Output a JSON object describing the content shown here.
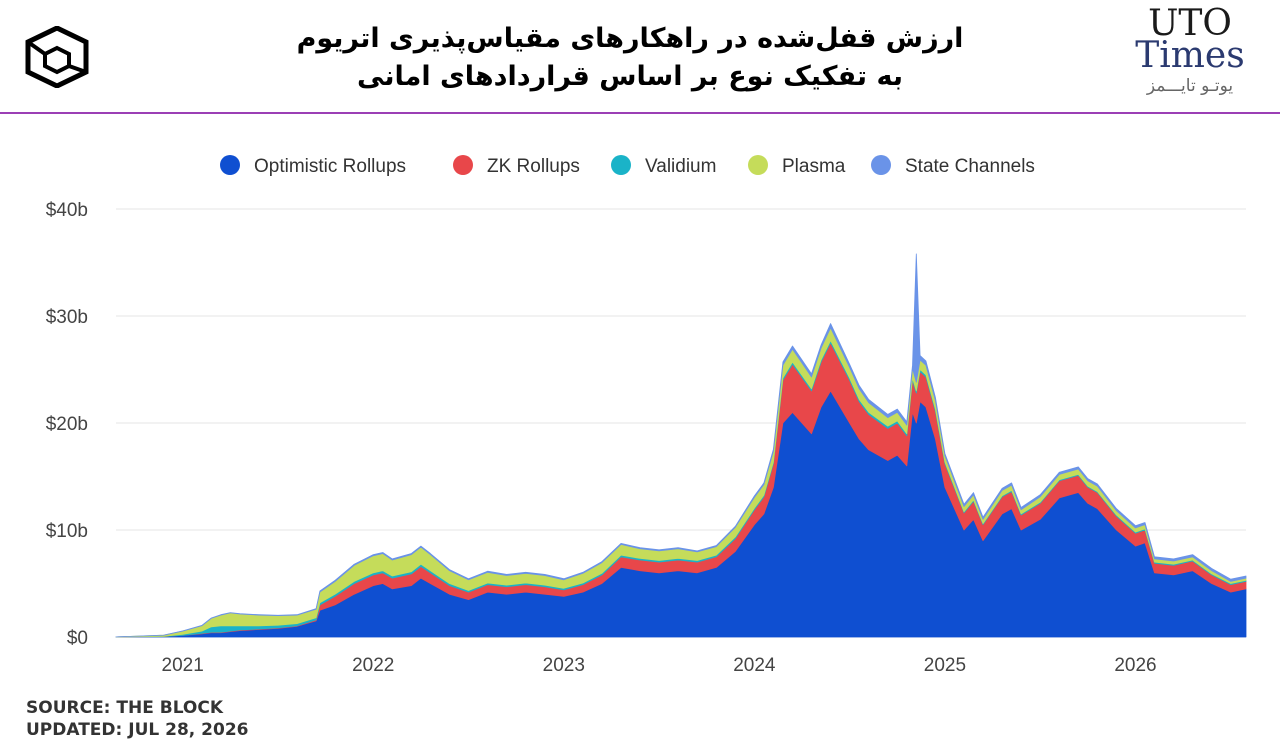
{
  "header": {
    "title_line1": "ارزش قفل‌شده در راهکارهای مقیاس‌پذیری اتریوم",
    "title_line2": "به تفکیک نوع بر اساس قراردادهای امانی",
    "brand": {
      "line1": "UTO",
      "line2": "Times",
      "persian": "یوتـو تایـــمز"
    }
  },
  "footer": {
    "source": "SOURCE: THE BLOCK",
    "updated": "UPDATED: JUL 28, 2026"
  },
  "chart_data": {
    "type": "area",
    "stacked": true,
    "title": "ارزش قفل‌شده در راهکارهای مقیاس‌پذیری اتریوم — به تفکیک نوع بر اساس قراردادهای امانی",
    "xlabel": "",
    "ylabel": "",
    "ylim": [
      0,
      40
    ],
    "y_unit": "billion USD",
    "yticks": [
      "$0",
      "$10b",
      "$20b",
      "$30b",
      "$40b"
    ],
    "yticks_values": [
      0,
      10,
      20,
      30,
      40
    ],
    "xticks": [
      "2021",
      "2022",
      "2023",
      "2024",
      "2025",
      "2026"
    ],
    "grid": true,
    "legend_position": "top",
    "x": [
      2020.65,
      2020.9,
      2021.0,
      2021.1,
      2021.15,
      2021.2,
      2021.25,
      2021.3,
      2021.4,
      2021.5,
      2021.6,
      2021.7,
      2021.72,
      2021.8,
      2021.9,
      2022.0,
      2022.05,
      2022.1,
      2022.2,
      2022.25,
      2022.3,
      2022.4,
      2022.5,
      2022.6,
      2022.7,
      2022.8,
      2022.9,
      2023.0,
      2023.1,
      2023.2,
      2023.3,
      2023.4,
      2023.5,
      2023.6,
      2023.7,
      2023.8,
      2023.9,
      2024.0,
      2024.05,
      2024.1,
      2024.15,
      2024.2,
      2024.3,
      2024.35,
      2024.4,
      2024.5,
      2024.55,
      2024.6,
      2024.7,
      2024.75,
      2024.8,
      2024.83,
      2024.85,
      2024.87,
      2024.9,
      2024.95,
      2025.0,
      2025.1,
      2025.15,
      2025.2,
      2025.3,
      2025.35,
      2025.4,
      2025.5,
      2025.6,
      2025.7,
      2025.75,
      2025.8,
      2025.9,
      2026.0,
      2026.05,
      2026.1,
      2026.2,
      2026.3,
      2026.4,
      2026.5,
      2026.58
    ],
    "series": [
      {
        "name": "Optimistic Rollups",
        "color": "#0f4fd1",
        "values": [
          0.01,
          0.05,
          0.15,
          0.3,
          0.4,
          0.4,
          0.5,
          0.6,
          0.7,
          0.8,
          1.0,
          1.5,
          2.5,
          3.0,
          4.0,
          4.8,
          5.0,
          4.5,
          4.8,
          5.5,
          5.0,
          4.0,
          3.5,
          4.2,
          4.0,
          4.2,
          4.0,
          3.8,
          4.2,
          5.0,
          6.5,
          6.2,
          6.0,
          6.2,
          6.0,
          6.5,
          8.0,
          10.5,
          11.5,
          14.0,
          20.0,
          21.0,
          19.0,
          21.5,
          23.0,
          20.0,
          18.5,
          17.5,
          16.5,
          17.0,
          16.0,
          21.0,
          20.0,
          22.0,
          21.5,
          18.5,
          14.0,
          10.0,
          11.0,
          9.0,
          11.5,
          12.0,
          10.0,
          11.0,
          13.0,
          13.5,
          12.5,
          12.0,
          10.0,
          8.5,
          8.8,
          6.0,
          5.8,
          6.2,
          5.0,
          4.2,
          4.5
        ]
      },
      {
        "name": "ZK Rollups",
        "color": "#e8474a",
        "values": [
          0.0,
          0.0,
          0.0,
          0.05,
          0.05,
          0.05,
          0.05,
          0.05,
          0.05,
          0.05,
          0.05,
          0.1,
          0.5,
          0.8,
          1.0,
          1.0,
          1.0,
          1.0,
          1.1,
          1.1,
          1.0,
          0.8,
          0.7,
          0.7,
          0.7,
          0.7,
          0.7,
          0.6,
          0.7,
          0.8,
          1.0,
          1.0,
          1.0,
          1.0,
          1.0,
          1.0,
          1.2,
          1.4,
          1.6,
          2.2,
          4.0,
          4.5,
          4.0,
          4.2,
          4.5,
          4.0,
          3.5,
          3.3,
          3.0,
          3.0,
          2.8,
          3.0,
          2.8,
          2.8,
          2.8,
          2.6,
          2.2,
          1.6,
          1.7,
          1.5,
          1.6,
          1.6,
          1.4,
          1.5,
          1.6,
          1.6,
          1.5,
          1.5,
          1.3,
          1.2,
          1.2,
          0.9,
          0.9,
          0.9,
          0.8,
          0.7,
          0.7
        ]
      },
      {
        "name": "Validium",
        "color": "#1ab3c8",
        "values": [
          0.0,
          0.02,
          0.1,
          0.2,
          0.5,
          0.6,
          0.5,
          0.4,
          0.3,
          0.25,
          0.2,
          0.2,
          0.2,
          0.2,
          0.2,
          0.2,
          0.2,
          0.2,
          0.2,
          0.2,
          0.2,
          0.2,
          0.15,
          0.15,
          0.15,
          0.15,
          0.15,
          0.15,
          0.15,
          0.15,
          0.15,
          0.15,
          0.15,
          0.15,
          0.15,
          0.15,
          0.15,
          0.15,
          0.15,
          0.15,
          0.2,
          0.2,
          0.2,
          0.2,
          0.2,
          0.2,
          0.2,
          0.2,
          0.2,
          0.2,
          0.2,
          0.2,
          0.2,
          0.2,
          0.2,
          0.2,
          0.15,
          0.1,
          0.1,
          0.1,
          0.1,
          0.1,
          0.1,
          0.1,
          0.1,
          0.1,
          0.1,
          0.1,
          0.1,
          0.1,
          0.1,
          0.1,
          0.1,
          0.1,
          0.1,
          0.1,
          0.1
        ]
      },
      {
        "name": "Plasma",
        "color": "#c5dc5a",
        "values": [
          0.0,
          0.1,
          0.3,
          0.5,
          0.8,
          1.0,
          1.2,
          1.1,
          1.0,
          0.9,
          0.8,
          0.8,
          1.0,
          1.2,
          1.5,
          1.6,
          1.6,
          1.5,
          1.6,
          1.6,
          1.5,
          1.2,
          1.0,
          1.0,
          0.9,
          0.9,
          0.9,
          0.8,
          0.9,
          1.0,
          1.0,
          0.9,
          0.9,
          0.9,
          0.8,
          0.8,
          0.9,
          1.0,
          1.0,
          1.0,
          1.2,
          1.2,
          1.1,
          1.1,
          1.2,
          1.0,
          1.0,
          0.9,
          0.8,
          0.8,
          0.8,
          0.9,
          0.8,
          0.9,
          0.9,
          0.8,
          0.6,
          0.5,
          0.5,
          0.4,
          0.5,
          0.5,
          0.4,
          0.5,
          0.5,
          0.5,
          0.5,
          0.5,
          0.4,
          0.4,
          0.4,
          0.3,
          0.3,
          0.3,
          0.3,
          0.2,
          0.2
        ]
      },
      {
        "name": "State Channels",
        "color": "#6a93e8",
        "values": [
          0.0,
          0.01,
          0.02,
          0.03,
          0.03,
          0.03,
          0.03,
          0.03,
          0.03,
          0.03,
          0.03,
          0.05,
          0.1,
          0.1,
          0.1,
          0.1,
          0.1,
          0.1,
          0.1,
          0.1,
          0.1,
          0.1,
          0.1,
          0.1,
          0.1,
          0.1,
          0.1,
          0.1,
          0.1,
          0.1,
          0.1,
          0.1,
          0.1,
          0.1,
          0.1,
          0.1,
          0.1,
          0.15,
          0.15,
          0.2,
          0.3,
          0.3,
          0.3,
          0.3,
          0.4,
          0.3,
          0.3,
          0.3,
          0.3,
          0.3,
          0.3,
          0.3,
          12.0,
          0.4,
          0.4,
          0.3,
          0.2,
          0.2,
          0.2,
          0.2,
          0.2,
          0.2,
          0.2,
          0.2,
          0.2,
          0.2,
          0.2,
          0.2,
          0.2,
          0.2,
          0.2,
          0.2,
          0.2,
          0.2,
          0.2,
          0.2,
          0.2
        ]
      }
    ]
  }
}
